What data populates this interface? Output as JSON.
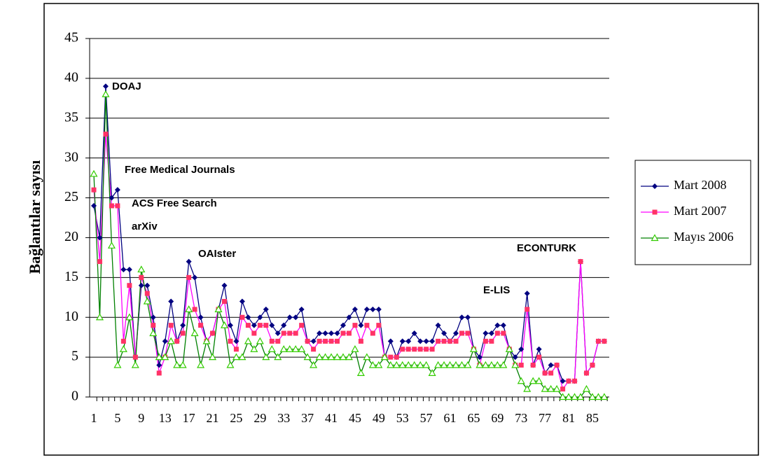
{
  "chart_data": {
    "type": "line",
    "y_label": "Bağlantılar sayısı",
    "categories": [
      1,
      null,
      null,
      null,
      5,
      null,
      null,
      null,
      9,
      null,
      null,
      null,
      13,
      null,
      null,
      null,
      17,
      null,
      null,
      null,
      21,
      null,
      null,
      null,
      25,
      null,
      null,
      null,
      29,
      null,
      null,
      null,
      33,
      null,
      null,
      null,
      37,
      null,
      null,
      null,
      41,
      null,
      null,
      null,
      45,
      null,
      null,
      null,
      49,
      null,
      null,
      null,
      53,
      null,
      null,
      null,
      57,
      null,
      null,
      null,
      61,
      null,
      null,
      null,
      65,
      null,
      null,
      null,
      69,
      null,
      null,
      null,
      73,
      null,
      null,
      null,
      77,
      null,
      null,
      null,
      81,
      null,
      null,
      null,
      85,
      null,
      null
    ],
    "series": [
      {
        "name": "Mart 2008",
        "color": "#000080",
        "marker": "diamond",
        "values": [
          24,
          20,
          39,
          25,
          26,
          16,
          16,
          5,
          14,
          14,
          10,
          4,
          7,
          12,
          7,
          9,
          17,
          15,
          10,
          7,
          8,
          11,
          14,
          9,
          7,
          12,
          10,
          9,
          10,
          11,
          9,
          8,
          9,
          10,
          10,
          11,
          7,
          7,
          8,
          8,
          8,
          8,
          9,
          10,
          11,
          9,
          11,
          11,
          11,
          5,
          7,
          5,
          7,
          7,
          8,
          7,
          7,
          7,
          9,
          8,
          7,
          8,
          10,
          10,
          6,
          5,
          8,
          8,
          9,
          9,
          6,
          5,
          6,
          13,
          4,
          6,
          3,
          4,
          4,
          2,
          2,
          2,
          17,
          3,
          4,
          7,
          7
        ]
      },
      {
        "name": "Mart 2007",
        "color": "#ff00ff",
        "marker_color": "#ff3366",
        "marker": "square",
        "values": [
          26,
          17,
          33,
          24,
          24,
          7,
          14,
          5,
          15,
          13,
          9,
          3,
          5,
          9,
          7,
          8,
          15,
          11,
          9,
          7,
          8,
          11,
          12,
          7,
          6,
          10,
          9,
          8,
          9,
          9,
          7,
          7,
          8,
          8,
          8,
          9,
          7,
          6,
          7,
          7,
          7,
          7,
          8,
          8,
          9,
          7,
          9,
          8,
          9,
          5,
          5,
          5,
          6,
          6,
          6,
          6,
          6,
          6,
          7,
          7,
          7,
          7,
          8,
          8,
          6,
          4,
          7,
          7,
          8,
          8,
          6,
          4,
          4,
          11,
          4,
          5,
          3,
          3,
          4,
          1,
          2,
          2,
          17,
          3,
          4,
          7,
          7
        ]
      },
      {
        "name": "Mayıs 2006",
        "color": "#008000",
        "marker_color": "#33cc00",
        "marker": "triangle",
        "values": [
          28,
          10,
          38,
          19,
          4,
          6,
          10,
          4,
          16,
          12,
          8,
          5,
          5,
          7,
          4,
          4,
          11,
          8,
          4,
          7,
          5,
          11,
          9,
          4,
          5,
          5,
          7,
          6,
          7,
          5,
          6,
          5,
          6,
          6,
          6,
          6,
          5,
          4,
          5,
          5,
          5,
          5,
          5,
          5,
          6,
          3,
          5,
          4,
          4,
          5,
          4,
          4,
          4,
          4,
          4,
          4,
          4,
          3,
          4,
          4,
          4,
          4,
          4,
          4,
          6,
          4,
          4,
          4,
          4,
          4,
          6,
          4,
          2,
          1,
          2,
          2,
          1,
          1,
          1,
          0,
          0,
          0,
          0,
          1,
          0,
          0,
          0
        ]
      }
    ],
    "annotations": [
      "DOAJ",
      "Free Medical Journals",
      "ACS Free Search",
      "arXiv",
      "OAIster",
      "ECONTURK",
      "E-LIS"
    ],
    "ylim": [
      0,
      45
    ],
    "yticks": [
      0,
      5,
      10,
      15,
      20,
      25,
      30,
      35,
      40,
      45
    ],
    "grid": true,
    "legend": "right"
  }
}
